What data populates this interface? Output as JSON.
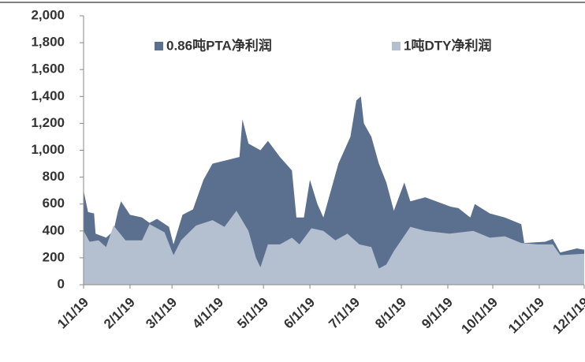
{
  "chart_data": {
    "type": "area",
    "series": [
      {
        "name": "0.86吨PTA净利润",
        "color": "#5b6f8f",
        "x": [
          "1/1/19",
          "1/4/19",
          "1/8/19",
          "1/9/19",
          "1/16/19",
          "1/21/19",
          "1/24/19",
          "1/26/19",
          "2/1/19",
          "2/9/19",
          "2/14/19",
          "2/19/19",
          "2/27/19",
          "3/2/19",
          "3/8/19",
          "3/15/19",
          "3/22/19",
          "3/28/19",
          "4/8/19",
          "4/15/19",
          "4/17/19",
          "4/21/19",
          "4/29/19",
          "5/4/19",
          "5/12/19",
          "5/20/19",
          "5/23/19",
          "5/28/19",
          "6/1/19",
          "6/6/19",
          "6/10/19",
          "6/15/19",
          "6/20/19",
          "6/28/19",
          "7/2/19",
          "7/5/19",
          "7/7/19",
          "7/12/19",
          "7/17/19",
          "7/22/19",
          "7/27/19",
          "8/3/19",
          "8/7/19",
          "8/17/19",
          "9/3/19",
          "9/8/19",
          "9/16/19",
          "9/19/19",
          "9/29/19",
          "10/9/19",
          "10/20/19",
          "10/22/19",
          "11/5/19",
          "11/10/19",
          "11/15/19",
          "11/26/19",
          "12/1/19"
        ],
        "values": [
          700,
          540,
          530,
          380,
          350,
          400,
          550,
          620,
          520,
          500,
          460,
          490,
          430,
          300,
          520,
          560,
          780,
          900,
          930,
          950,
          1230,
          1050,
          1000,
          1070,
          950,
          850,
          500,
          500,
          780,
          600,
          500,
          700,
          900,
          1100,
          1370,
          1400,
          1200,
          1100,
          900,
          760,
          550,
          760,
          620,
          650,
          580,
          570,
          500,
          600,
          530,
          500,
          450,
          310,
          320,
          340,
          240,
          270,
          260
        ]
      },
      {
        "name": "1吨DTY净利润",
        "color": "#b4bfd0",
        "x": [
          "1/1/19",
          "1/5/19",
          "1/11/19",
          "1/16/19",
          "1/21/19",
          "1/29/19",
          "2/9/19",
          "2/14/19",
          "2/24/19",
          "3/2/19",
          "3/7/19",
          "3/17/19",
          "3/28/19",
          "4/5/19",
          "4/13/19",
          "4/21/19",
          "4/26/19",
          "4/29/19",
          "5/4/19",
          "5/12/19",
          "5/20/19",
          "5/25/19",
          "6/2/19",
          "6/10/19",
          "6/18/19",
          "6/26/19",
          "7/4/19",
          "7/12/19",
          "7/17/19",
          "7/22/19",
          "7/27/19",
          "8/7/19",
          "8/17/19",
          "9/2/19",
          "9/18/19",
          "9/29/19",
          "10/9/19",
          "10/20/19",
          "10/31/19",
          "11/10/19",
          "11/15/19",
          "12/1/19"
        ],
        "values": [
          400,
          320,
          330,
          280,
          440,
          330,
          330,
          450,
          390,
          220,
          330,
          440,
          480,
          430,
          550,
          400,
          200,
          130,
          300,
          300,
          350,
          300,
          420,
          400,
          330,
          380,
          300,
          280,
          120,
          150,
          250,
          430,
          400,
          380,
          400,
          350,
          360,
          310,
          300,
          300,
          220,
          230
        ]
      }
    ],
    "xlim": [
      "1/1/19",
      "12/1/19"
    ],
    "xticks": [
      "1/1/19",
      "2/1/19",
      "3/1/19",
      "4/1/19",
      "5/1/19",
      "6/1/19",
      "7/1/19",
      "8/1/19",
      "9/1/19",
      "10/1/19",
      "11/1/19",
      "12/1/19"
    ],
    "ylim": [
      0,
      2000
    ],
    "yticks": [
      0,
      {
        "value": 200,
        "label": "200"
      },
      400,
      600,
      800,
      {
        "value": 1000,
        "label": "1,000"
      },
      {
        "value": 1200,
        "label": "1,200"
      },
      {
        "value": 1400,
        "label": "1,400"
      },
      {
        "value": 1600,
        "label": "1,600"
      },
      {
        "value": 1800,
        "label": "1,800"
      },
      {
        "value": 2000,
        "label": "2,000"
      }
    ],
    "legend": "top"
  }
}
